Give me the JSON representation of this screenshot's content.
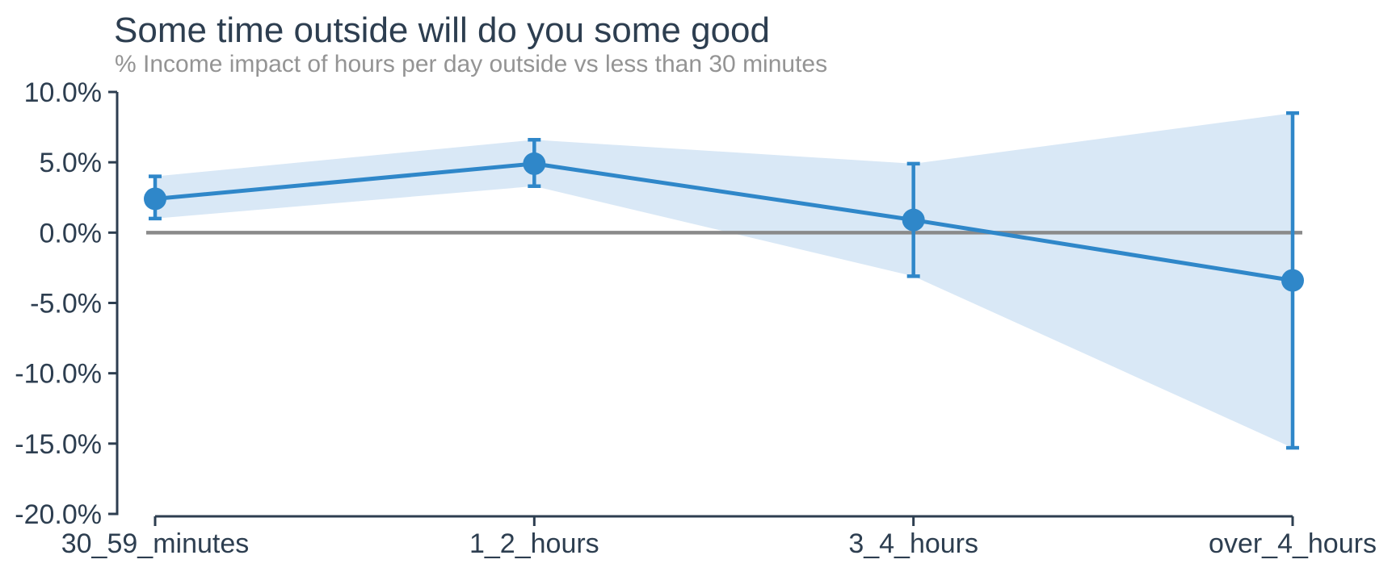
{
  "chart_data": {
    "type": "line",
    "title": "Some time outside will do you some good",
    "subtitle": "% Income impact of hours per day outside vs less than 30 minutes",
    "categories": [
      "30_59_minutes",
      "1_2_hours",
      "3_4_hours",
      "over_4_hours"
    ],
    "series": [
      {
        "name": "income_impact_estimate",
        "values": [
          2.4,
          4.9,
          0.9,
          -3.4
        ],
        "ci_upper": [
          4.0,
          6.6,
          4.9,
          8.5
        ],
        "ci_lower": [
          1.0,
          3.3,
          -3.1,
          -15.3
        ]
      }
    ],
    "ylim": [
      -20,
      10
    ],
    "yticks": [
      10,
      5,
      0,
      -5,
      -10,
      -15,
      -20
    ],
    "ytick_labels": [
      "10.0%",
      "5.0%",
      "0.0%",
      "-5.0%",
      "-10.0%",
      "-15.0%",
      "-20.0%"
    ],
    "xlabel": "",
    "ylabel": "",
    "zero_reference_line": 0,
    "grid": "off",
    "legend": "none",
    "marker_shape": "circle",
    "has_error_bars": true,
    "has_confidence_band": true,
    "colors": {
      "line": "#2f87c9",
      "marker": "#2f87c9",
      "error_bar": "#2f87c9",
      "band_fill": "#d9e8f6",
      "zero_line": "#8a8a8a",
      "axis": "#2d3e50",
      "tick_label": "#2d3e50",
      "title": "#2d3e50",
      "subtitle": "#949494",
      "background": "#ffffff"
    }
  }
}
